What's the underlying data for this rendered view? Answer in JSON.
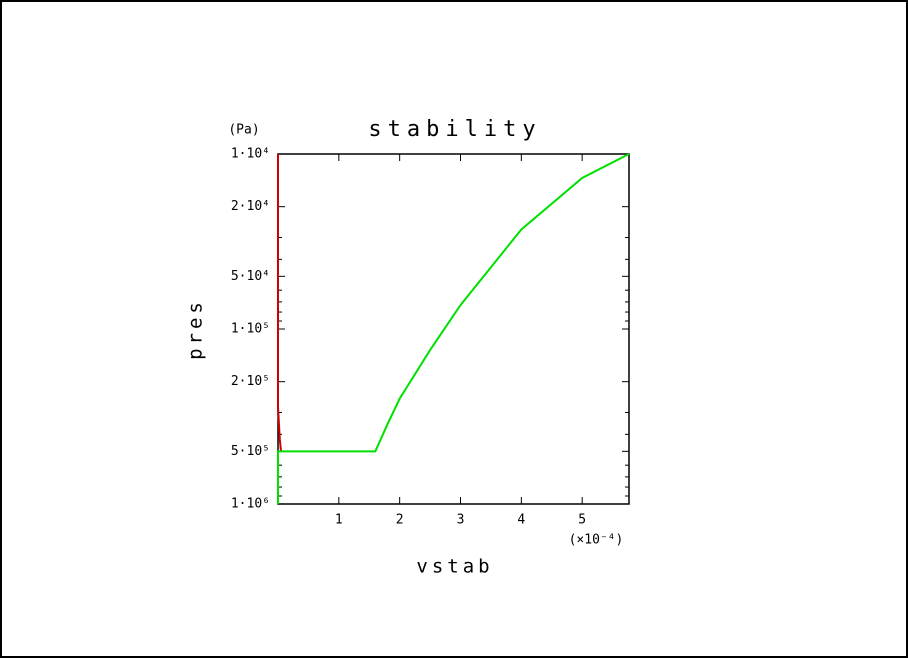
{
  "chart_data": {
    "type": "line",
    "title": "stability",
    "x_label": "vstab",
    "x_multiplier": "(×10⁻⁴)",
    "y_label": "pres",
    "y_unit": "(Pa)",
    "xlim": [
      0,
      5.77
    ],
    "xticks": [
      1,
      2,
      3,
      4,
      5
    ],
    "ylim": [
      1000000,
      10000
    ],
    "y_scale": "log",
    "yticks": [
      {
        "value": 10000,
        "label": "1·10⁴"
      },
      {
        "value": 20000,
        "label": "2·10⁴"
      },
      {
        "value": 50000,
        "label": "5·10⁴"
      },
      {
        "value": 100000,
        "label": "1·10⁵"
      },
      {
        "value": 200000,
        "label": "2·10⁵"
      },
      {
        "value": 500000,
        "label": "5·10⁵"
      },
      {
        "value": 1000000,
        "label": "1·10⁶"
      }
    ],
    "yminorticks": [
      30000,
      40000,
      60000,
      70000,
      80000,
      90000,
      300000,
      400000,
      600000,
      700000,
      800000,
      900000
    ],
    "series": [
      {
        "color": "#d00000",
        "x": [
          0,
          0,
          0.03,
          0.05
        ],
        "values": [
          10000,
          280000,
          430000,
          500000
        ]
      },
      {
        "color": "#00e000",
        "x": [
          0,
          0,
          1.6,
          1.8,
          2,
          2.5,
          3,
          4,
          5,
          5.77
        ],
        "values": [
          1000000,
          500000,
          500000,
          350000,
          250000,
          132000,
          73000,
          27000,
          13700,
          10000
        ]
      }
    ]
  }
}
